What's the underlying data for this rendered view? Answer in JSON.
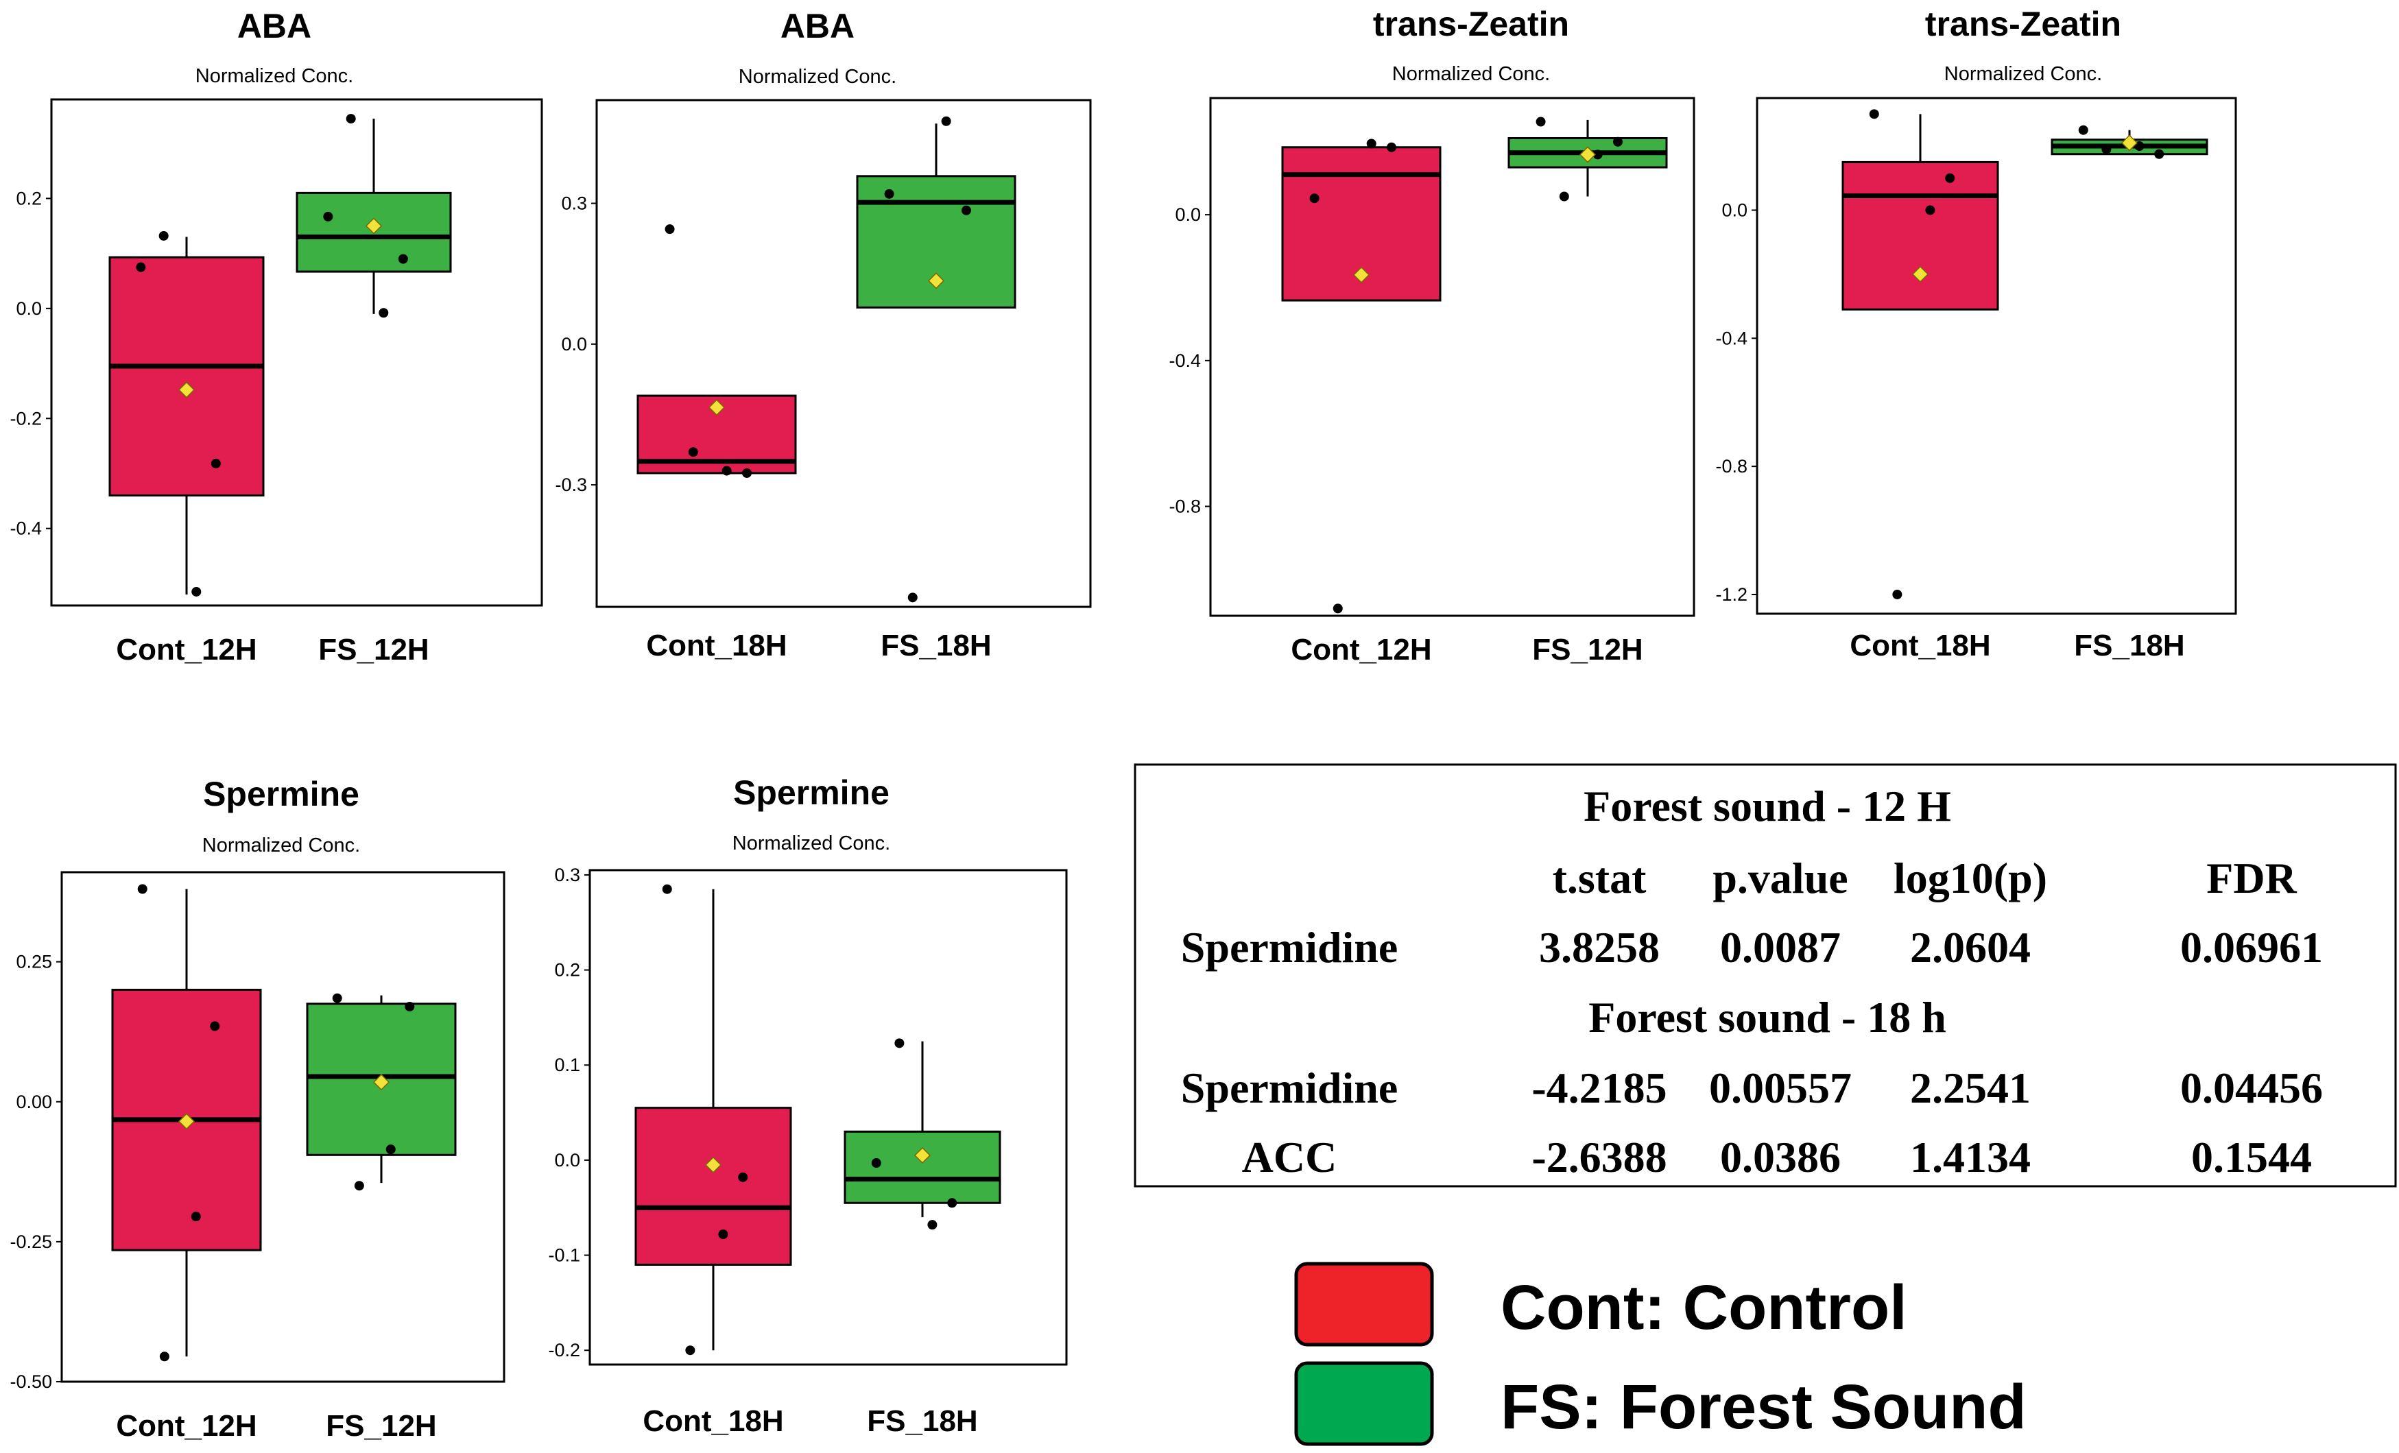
{
  "colors": {
    "cont_fill": "#E21D4F",
    "fs_fill": "#3CB043",
    "mean_marker": "#F2E23A",
    "point": "#000000",
    "legend_cont": "#EE2229",
    "legend_fs": "#00A84F"
  },
  "chart_data": [
    {
      "id": "aba-12",
      "type": "box",
      "title": "ABA",
      "subtitle": "Normalized Conc.",
      "ylim": [
        -0.54,
        0.38
      ],
      "yticks": [
        0.2,
        0.0,
        -0.2,
        -0.4
      ],
      "ytick_labels": [
        "0.2",
        "0.0",
        "-0.2",
        "-0.4"
      ],
      "groups": [
        {
          "name": "Cont_12H",
          "group": "cont",
          "q1": -0.34,
          "median": -0.105,
          "q3": 0.093,
          "whisker_low": -0.52,
          "whisker_high": 0.13,
          "mean": -0.148,
          "points": [
            0.075,
            -0.282,
            -0.515,
            0.132
          ]
        },
        {
          "name": "FS_12H",
          "group": "fs",
          "q1": 0.067,
          "median": 0.13,
          "q3": 0.21,
          "whisker_low": -0.01,
          "whisker_high": 0.345,
          "mean": 0.15,
          "points": [
            0.167,
            0.09,
            -0.008,
            0.345
          ]
        }
      ]
    },
    {
      "id": "aba-18",
      "type": "box",
      "title": "ABA",
      "subtitle": "Normalized Conc.",
      "ylim": [
        -0.56,
        0.52
      ],
      "yticks": [
        0.3,
        0.0,
        -0.3
      ],
      "ytick_labels": [
        "0.3",
        "0.0",
        "-0.3"
      ],
      "groups": [
        {
          "name": "Cont_18H",
          "group": "cont",
          "q1": -0.275,
          "median": -0.25,
          "q3": -0.11,
          "whisker_low": -0.275,
          "whisker_high": -0.11,
          "mean": -0.135,
          "points": [
            0.245,
            -0.275,
            -0.27,
            -0.23
          ]
        },
        {
          "name": "FS_18H",
          "group": "fs",
          "q1": 0.078,
          "median": 0.302,
          "q3": 0.358,
          "whisker_low": 0.078,
          "whisker_high": 0.47,
          "mean": 0.135,
          "points": [
            0.32,
            0.285,
            0.475,
            -0.54
          ]
        }
      ]
    },
    {
      "id": "zeatin-12",
      "type": "box",
      "title": "trans-Zeatin",
      "subtitle": "Normalized Conc.",
      "ylim": [
        -1.1,
        0.32
      ],
      "yticks": [
        0.0,
        -0.4,
        -0.8
      ],
      "ytick_labels": [
        "0.0",
        "-0.4",
        "-0.8"
      ],
      "groups": [
        {
          "name": "Cont_12H",
          "group": "cont",
          "q1": -0.235,
          "median": 0.11,
          "q3": 0.185,
          "whisker_low": -0.235,
          "whisker_high": 0.185,
          "mean": -0.165,
          "points": [
            0.045,
            0.185,
            0.195,
            -1.08
          ]
        },
        {
          "name": "FS_12H",
          "group": "fs",
          "q1": 0.13,
          "median": 0.17,
          "q3": 0.21,
          "whisker_low": 0.05,
          "whisker_high": 0.26,
          "mean": 0.165,
          "points": [
            0.255,
            0.2,
            0.165,
            0.05
          ]
        }
      ]
    },
    {
      "id": "zeatin-18",
      "type": "box",
      "title": "trans-Zeatin",
      "subtitle": "Normalized Conc.",
      "ylim": [
        -1.26,
        0.35
      ],
      "yticks": [
        0.0,
        -0.4,
        -0.8,
        -1.2
      ],
      "ytick_labels": [
        "0.0",
        "-0.4",
        "-0.8",
        "-1.2"
      ],
      "groups": [
        {
          "name": "Cont_18H",
          "group": "cont",
          "q1": -0.31,
          "median": 0.045,
          "q3": 0.15,
          "whisker_low": -0.31,
          "whisker_high": 0.3,
          "mean": -0.2,
          "points": [
            0.3,
            0.1,
            0.0,
            -1.2
          ]
        },
        {
          "name": "FS_18H",
          "group": "fs",
          "q1": 0.175,
          "median": 0.2,
          "q3": 0.22,
          "whisker_low": 0.175,
          "whisker_high": 0.25,
          "mean": 0.21,
          "points": [
            0.25,
            0.175,
            0.2,
            0.19
          ]
        }
      ]
    },
    {
      "id": "spermine-12",
      "type": "box",
      "title": "Spermine",
      "subtitle": "Normalized Conc.",
      "ylim": [
        -0.5,
        0.41
      ],
      "yticks": [
        0.25,
        0.0,
        -0.25,
        -0.5
      ],
      "ytick_labels": [
        "0.25",
        "0.00",
        "-0.25",
        "-0.50"
      ],
      "groups": [
        {
          "name": "Cont_12H",
          "group": "cont",
          "q1": -0.265,
          "median": -0.032,
          "q3": 0.2,
          "whisker_low": -0.455,
          "whisker_high": 0.38,
          "mean": -0.035,
          "points": [
            0.38,
            0.135,
            -0.205,
            -0.455
          ]
        },
        {
          "name": "FS_12H",
          "group": "fs",
          "q1": -0.095,
          "median": 0.045,
          "q3": 0.175,
          "whisker_low": -0.145,
          "whisker_high": 0.19,
          "mean": 0.035,
          "points": [
            0.185,
            0.17,
            -0.085,
            -0.15
          ]
        }
      ]
    },
    {
      "id": "spermine-18",
      "type": "box",
      "title": "Spermine",
      "subtitle": "Normalized Conc.",
      "ylim": [
        -0.215,
        0.305
      ],
      "yticks": [
        0.3,
        0.2,
        0.1,
        0.0,
        -0.1,
        -0.2
      ],
      "ytick_labels": [
        "0.3",
        "0.2",
        "0.1",
        "0.0",
        "-0.1",
        "-0.2"
      ],
      "groups": [
        {
          "name": "Cont_18H",
          "group": "cont",
          "q1": -0.11,
          "median": -0.05,
          "q3": 0.055,
          "whisker_low": -0.2,
          "whisker_high": 0.285,
          "mean": -0.005,
          "points": [
            0.285,
            -0.018,
            -0.078,
            -0.2
          ]
        },
        {
          "name": "FS_18H",
          "group": "fs",
          "q1": -0.045,
          "median": -0.02,
          "q3": 0.03,
          "whisker_low": -0.06,
          "whisker_high": 0.125,
          "mean": 0.005,
          "points": [
            -0.003,
            -0.045,
            -0.068,
            0.123
          ]
        }
      ]
    }
  ],
  "table": {
    "section1_title": "Forest sound - 12 H",
    "headers": [
      "t.stat",
      "p.value",
      "log10(p)",
      "FDR"
    ],
    "section1_rows": [
      {
        "name": "Spermidine",
        "values": [
          "3.8258",
          "0.0087",
          "2.0604",
          "0.06961"
        ]
      }
    ],
    "section2_title": "Forest sound - 18 h",
    "section2_rows": [
      {
        "name": "Spermidine",
        "values": [
          "-4.2185",
          "0.00557",
          "2.2541",
          "0.04456"
        ]
      },
      {
        "name": "ACC",
        "values": [
          "-2.6388",
          "0.0386",
          "1.4134",
          "0.1544"
        ]
      }
    ]
  },
  "legend": {
    "items": [
      {
        "label": "Cont: Control"
      },
      {
        "label": "FS: Forest Sound"
      }
    ]
  }
}
